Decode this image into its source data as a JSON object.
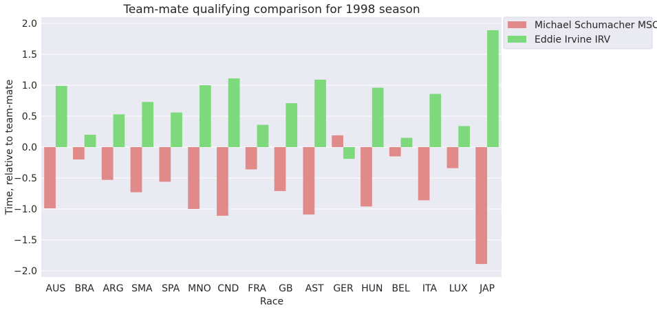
{
  "chart_data": {
    "type": "bar",
    "title": "Team-mate qualifying comparison for 1998 season",
    "xlabel": "Race",
    "ylabel": "Time, relative to team-mate",
    "categories": [
      "AUS",
      "BRA",
      "ARG",
      "SMA",
      "SPA",
      "MNO",
      "CND",
      "FRA",
      "GB",
      "AST",
      "GER",
      "HUN",
      "BEL",
      "ITA",
      "LUX",
      "JAP"
    ],
    "series": [
      {
        "name": "Michael Schumacher MSC",
        "color": "#e08a8a",
        "values": [
          -0.99,
          -0.2,
          -0.53,
          -0.73,
          -0.56,
          -1.0,
          -1.11,
          -0.36,
          -0.71,
          -1.09,
          0.19,
          -0.96,
          -0.15,
          -0.86,
          -0.34,
          -1.89
        ]
      },
      {
        "name": "Eddie Irvine IRV",
        "color": "#7dd97b",
        "values": [
          0.99,
          0.2,
          0.53,
          0.73,
          0.56,
          1.0,
          1.11,
          0.36,
          0.71,
          1.09,
          -0.19,
          0.96,
          0.15,
          0.86,
          0.34,
          1.89
        ]
      }
    ],
    "ylim": [
      -2.1,
      2.1
    ],
    "yticks": [
      -2.0,
      -1.5,
      -1.0,
      -0.5,
      0.0,
      0.5,
      1.0,
      1.5,
      2.0
    ],
    "ytick_labels": [
      "−2.0",
      "−1.5",
      "−1.0",
      "−0.5",
      "0.0",
      "0.5",
      "1.0",
      "1.5",
      "2.0"
    ],
    "grid": true,
    "legend_placement": "outside-top-right",
    "background": "#eaeaf2"
  }
}
